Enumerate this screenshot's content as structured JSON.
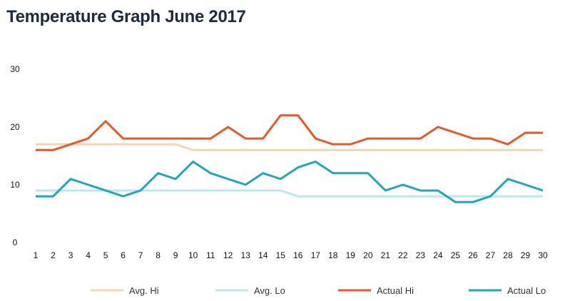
{
  "chart_data": {
    "type": "line",
    "title": "Temperature Graph June 2017",
    "xlabel": "",
    "ylabel": "",
    "x": [
      1,
      2,
      3,
      4,
      5,
      6,
      7,
      8,
      9,
      10,
      11,
      12,
      13,
      14,
      15,
      16,
      17,
      18,
      19,
      20,
      21,
      22,
      23,
      24,
      25,
      26,
      27,
      28,
      29,
      30
    ],
    "ylim": [
      0,
      30
    ],
    "yticks": [
      0,
      10,
      20,
      30
    ],
    "grid": false,
    "legend_position": "bottom",
    "series": [
      {
        "name": "Avg. Hi",
        "color": "#f8d5b0",
        "width": 3,
        "values": [
          17,
          17,
          17,
          17,
          17,
          17,
          17,
          17,
          17,
          16,
          16,
          16,
          16,
          16,
          16,
          16,
          16,
          16,
          16,
          16,
          16,
          16,
          16,
          16,
          16,
          16,
          16,
          16,
          16,
          16
        ]
      },
      {
        "name": "Avg. Lo",
        "color": "#bfe5ef",
        "width": 3,
        "values": [
          9,
          9,
          9,
          9,
          9,
          9,
          9,
          9,
          9,
          9,
          9,
          9,
          9,
          9,
          9,
          8,
          8,
          8,
          8,
          8,
          8,
          8,
          8,
          8,
          8,
          8,
          8,
          8,
          8,
          8
        ]
      },
      {
        "name": "Actual Hi",
        "color": "#e8582d",
        "width": 3,
        "values": [
          16,
          16,
          17,
          18,
          21,
          18,
          18,
          18,
          18,
          18,
          18,
          20,
          18,
          18,
          22,
          22,
          18,
          17,
          17,
          18,
          18,
          18,
          18,
          20,
          19,
          18,
          18,
          17,
          19,
          19
        ]
      },
      {
        "name": "Actual Lo",
        "color": "#22a6b9",
        "width": 3,
        "values": [
          8,
          8,
          11,
          10,
          9,
          8,
          9,
          12,
          11,
          14,
          12,
          11,
          10,
          12,
          11,
          13,
          14,
          12,
          12,
          12,
          9,
          10,
          9,
          9,
          7,
          7,
          8,
          11,
          10,
          9
        ]
      }
    ]
  }
}
